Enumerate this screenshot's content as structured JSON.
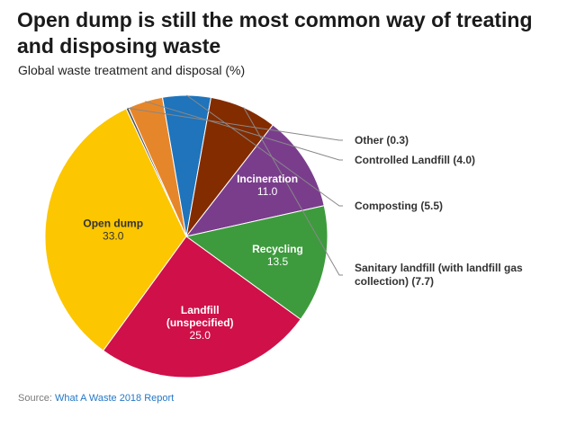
{
  "title": "Open dump is still the most common way of treating and disposing waste",
  "subtitle": "Global waste treatment and disposal (%)",
  "source": {
    "prefix": "Source: ",
    "link_text": "What A Waste 2018 Report"
  },
  "chart_data": {
    "type": "pie",
    "title": "Open dump is still the most common way of treating and disposing waste",
    "subtitle": "Global waste treatment and disposal (%)",
    "slices": [
      {
        "label": "Open dump",
        "value": 33.0,
        "display": "33.0",
        "color": "#fcc600",
        "label_mode": "inside",
        "text_color": "#333333"
      },
      {
        "label": "Other",
        "value": 0.3,
        "display": "Other (0.3)",
        "color": "#555555",
        "label_mode": "outside"
      },
      {
        "label": "Controlled Landfill",
        "value": 4.0,
        "display": "Controlled Landfill (4.0)",
        "color": "#e6862a",
        "label_mode": "outside"
      },
      {
        "label": "Composting",
        "value": 5.5,
        "display": "Composting (5.5)",
        "color": "#1f74bb",
        "label_mode": "outside"
      },
      {
        "label": "Sanitary landfill (with landfill gas collection)",
        "value": 7.7,
        "display": "Sanitary landfill (with landfill gas collection) (7.7)",
        "display_lines": [
          "Sanitary landfill (with landfill gas",
          "collection) (7.7)"
        ],
        "color": "#832c00",
        "label_mode": "outside"
      },
      {
        "label": "Incineration",
        "value": 11.0,
        "display": "11.0",
        "color": "#7a3d8c",
        "label_mode": "inside",
        "text_color": "#ffffff"
      },
      {
        "label": "Recycling",
        "value": 13.5,
        "display": "13.5",
        "color": "#3d9b3d",
        "label_mode": "inside",
        "text_color": "#ffffff"
      },
      {
        "label": "Landfill (unspecified)",
        "value": 25.0,
        "display": "25.0",
        "display_lines": [
          "Landfill",
          "(unspecified)"
        ],
        "color": "#d01048",
        "label_mode": "inside",
        "text_color": "#ffffff"
      }
    ]
  }
}
